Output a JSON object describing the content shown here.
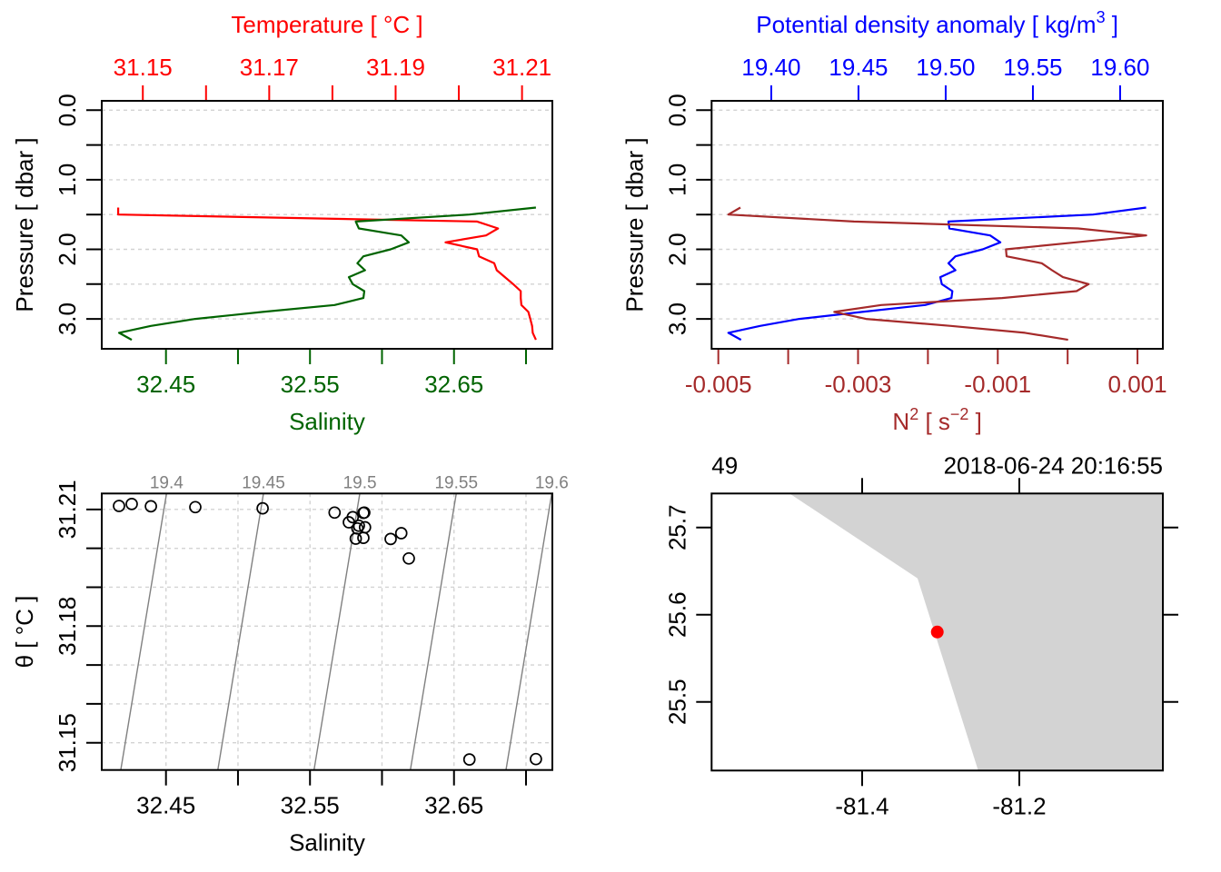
{
  "chart_data": [
    {
      "id": "temperature-salinity-profile",
      "type": "line",
      "pressure": [
        1.4,
        1.5,
        1.6,
        1.7,
        1.8,
        1.9,
        2.0,
        2.1,
        2.2,
        2.3,
        2.4,
        2.5,
        2.6,
        2.7,
        2.8,
        2.9,
        3.0,
        3.1,
        3.2,
        3.3
      ],
      "y_axis": {
        "label": "Pressure [ dbar ]",
        "lim": [
          -0.1345,
          3.4295
        ],
        "reversed": true,
        "ticks": [
          0,
          0.5,
          1.0,
          1.5,
          2.0,
          2.5,
          3.0
        ],
        "tick_labels": [
          "0.0",
          "",
          "1.0",
          "",
          "2.0",
          "",
          "3.0"
        ],
        "grid": "dotted"
      },
      "top_axis": {
        "label_parts": [
          {
            "text": "Temperature [ °C ]"
          }
        ],
        "color": "#FF0000",
        "lim": [
          31.1435,
          31.2148
        ],
        "ticks": [
          31.15,
          31.16,
          31.17,
          31.18,
          31.19,
          31.2,
          31.21
        ],
        "tick_labels": [
          "31.15",
          "",
          "31.17",
          "",
          "31.19",
          "",
          "31.21"
        ]
      },
      "bottom_axis": {
        "label_parts": [
          {
            "text": "Salinity"
          }
        ],
        "color": "#006400",
        "lim": [
          32.4054,
          32.7183
        ],
        "ticks": [
          32.45,
          32.5,
          32.55,
          32.6,
          32.65,
          32.7
        ],
        "tick_labels": [
          "32.45",
          "",
          "32.55",
          "",
          "32.65",
          ""
        ]
      },
      "series": [
        {
          "id": "temperature",
          "name": "Temperature",
          "axis": "top",
          "color": "#FF0000",
          "values": [
            31.1461,
            31.1461,
            31.2029,
            31.2062,
            31.2043,
            31.1979,
            31.2029,
            31.2032,
            31.2056,
            31.206,
            31.2073,
            31.2086,
            31.2098,
            31.2098,
            31.2099,
            31.211,
            31.2113,
            31.2116,
            31.2117,
            31.2122
          ]
        },
        {
          "id": "salinity",
          "name": "Salinity",
          "axis": "bottom",
          "color": "#006400",
          "values": [
            32.7069,
            32.6607,
            32.5818,
            32.5839,
            32.6134,
            32.6186,
            32.606,
            32.5871,
            32.5829,
            32.5882,
            32.577,
            32.5797,
            32.5877,
            32.5871,
            32.5671,
            32.5171,
            32.4704,
            32.4395,
            32.4174,
            32.4262
          ]
        }
      ]
    },
    {
      "id": "density-n2-profile",
      "type": "line",
      "pressure": [
        1.4,
        1.5,
        1.6,
        1.7,
        1.8,
        1.9,
        2.0,
        2.1,
        2.2,
        2.3,
        2.4,
        2.5,
        2.6,
        2.7,
        2.8,
        2.9,
        3.0,
        3.1,
        3.2,
        3.3
      ],
      "y_axis": {
        "label": "Pressure [ dbar ]",
        "lim": [
          -0.1345,
          3.4295
        ],
        "reversed": true,
        "ticks": [
          0,
          0.5,
          1.0,
          1.5,
          2.0,
          2.5,
          3.0
        ],
        "tick_labels": [
          "0.0",
          "",
          "1.0",
          "",
          "2.0",
          "",
          "3.0"
        ],
        "grid": "dotted"
      },
      "top_axis": {
        "label_parts": [
          {
            "text": "Potential density anomaly [ kg/m"
          },
          {
            "text": "3",
            "sup": true
          },
          {
            "text": " ]"
          }
        ],
        "color": "#0000FF",
        "lim": [
          19.3658,
          19.6245
        ],
        "ticks": [
          19.4,
          19.45,
          19.5,
          19.55,
          19.6
        ],
        "tick_labels": [
          "19.40",
          "19.45",
          "19.50",
          "19.55",
          "19.60"
        ]
      },
      "bottom_axis": {
        "label_parts": [
          {
            "text": "N"
          },
          {
            "text": "2",
            "sup": true
          },
          {
            "text": " [ s"
          },
          {
            "text": "−2",
            "sup": true
          },
          {
            "text": " ]"
          }
        ],
        "color": "#A52A2A",
        "lim": [
          -0.005096,
          0.001363
        ],
        "ticks": [
          -0.005,
          -0.004,
          -0.003,
          -0.002,
          -0.001,
          0.0,
          0.001
        ],
        "tick_labels": [
          "-0.005",
          "",
          "-0.003",
          "",
          "-0.001",
          "",
          "0.001"
        ]
      },
      "series": [
        {
          "id": "potential-density-anomaly",
          "name": "Potential density anomaly",
          "axis": "top",
          "color": "#0000FF",
          "values": [
            19.6149,
            19.5845,
            19.5016,
            19.5021,
            19.5255,
            19.5313,
            19.5212,
            19.5056,
            19.5016,
            19.5056,
            19.4969,
            19.4978,
            19.5038,
            19.5033,
            19.4882,
            19.4521,
            19.4161,
            19.3936,
            19.3754,
            19.3827
          ]
        },
        {
          "id": "buoyancy-frequency-squared",
          "name": "N2",
          "axis": "bottom",
          "color": "#A52A2A",
          "values": [
            -0.004684,
            -0.004857,
            -0.003059,
            0.00015,
            0.001125,
            0.000114,
            -0.000883,
            -0.000874,
            -0.000371,
            -0.000224,
            -6.8e-05,
            0.0003,
            0.000127,
            -0.000939,
            -0.002668,
            -0.003341,
            -0.002886,
            -0.001671,
            -0.00061,
            7e-06
          ]
        }
      ]
    },
    {
      "id": "ts-diagram",
      "type": "scatter",
      "grid": "dotted",
      "x_axis": {
        "label": "Salinity",
        "lim": [
          32.4054,
          32.7183
        ],
        "ticks": [
          32.45,
          32.5,
          32.55,
          32.6,
          32.65,
          32.7
        ],
        "tick_labels": [
          "32.45",
          "",
          "32.55",
          "",
          "32.65",
          ""
        ]
      },
      "y_axis": {
        "label": "θ [ °C ]",
        "lim": [
          31.143,
          31.2141
        ],
        "ticks": [
          31.15,
          31.16,
          31.17,
          31.18,
          31.19,
          31.2,
          31.21
        ],
        "tick_labels": [
          "31.15",
          "",
          "",
          "31.18",
          "",
          "",
          "31.21"
        ]
      },
      "isopycnals": [
        {
          "label": "19.4",
          "line": [
            [
              32.4504,
              31.2141
            ],
            [
              32.4186,
              31.143
            ]
          ]
        },
        {
          "label": "19.45",
          "line": [
            [
              32.5177,
              31.2141
            ],
            [
              32.486,
              31.143
            ]
          ]
        },
        {
          "label": "19.5",
          "line": [
            [
              32.5846,
              31.2141
            ],
            [
              32.5528,
              31.143
            ]
          ]
        },
        {
          "label": "19.55",
          "line": [
            [
              32.6516,
              31.2141
            ],
            [
              32.6197,
              31.143
            ]
          ]
        },
        {
          "label": "19.6",
          "line": [
            [
              32.7179,
              31.2141
            ],
            [
              32.6861,
              31.143
            ]
          ]
        }
      ],
      "points": {
        "salinity": [
          32.7069,
          32.6607,
          32.5818,
          32.5839,
          32.6134,
          32.6186,
          32.606,
          32.5871,
          32.5829,
          32.5882,
          32.577,
          32.5797,
          32.5877,
          32.5871,
          32.5671,
          32.5171,
          32.4704,
          32.4395,
          32.4174,
          32.4262
        ],
        "theta": [
          31.1458,
          31.1457,
          31.2025,
          31.2058,
          31.2039,
          31.1974,
          31.2024,
          31.2027,
          31.2051,
          31.2054,
          31.2067,
          31.208,
          31.2092,
          31.2091,
          31.2092,
          31.2103,
          31.2106,
          31.2108,
          31.2109,
          31.2114
        ]
      }
    },
    {
      "id": "station-map",
      "type": "map",
      "title_left": "49",
      "title_right": "2018-06-24 20:16:55",
      "x_axis": {
        "lim": [
          -81.5916,
          -81.0173
        ],
        "ticks": [
          -81.4,
          -81.2
        ],
        "tick_labels": [
          "-81.4",
          "-81.2"
        ]
      },
      "y_axis": {
        "lim": [
          25.4213,
          25.739
        ],
        "ticks": [
          25.5,
          25.6,
          25.7
        ],
        "tick_labels": [
          "25.5",
          "25.6",
          "25.7"
        ]
      },
      "land": {
        "color": "#D3D3D3",
        "polygon": [
          [
            -81.4925,
            25.739
          ],
          [
            -81.3295,
            25.6417
          ],
          [
            -81.2524,
            25.4213
          ],
          [
            -81.0173,
            25.4213
          ],
          [
            -81.0173,
            25.739
          ]
        ]
      },
      "station": {
        "lon": -81.3044,
        "lat": 25.5802,
        "color": "#FF0000"
      }
    }
  ]
}
